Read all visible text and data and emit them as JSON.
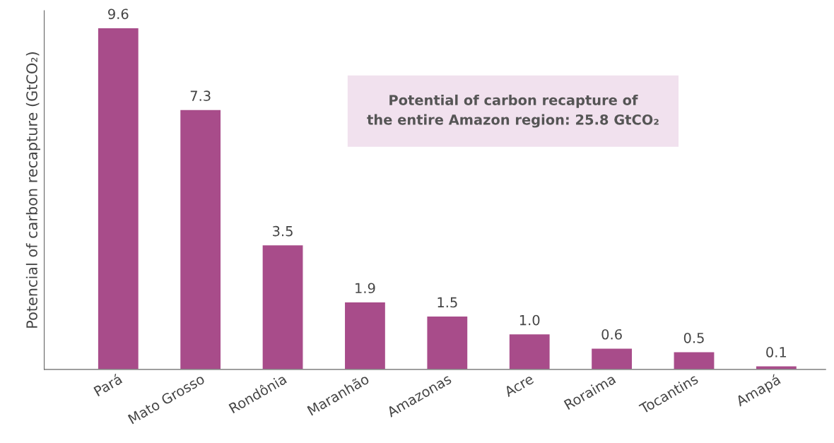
{
  "chart_data": {
    "type": "bar",
    "ylabel": "Potencial of carbon recapture (GtCO₂)",
    "categories": [
      "Pará",
      "Mato Grosso",
      "Rondônia",
      "Maranhão",
      "Amazonas",
      "Acre",
      "Roraima",
      "Tocantins",
      "Amapá"
    ],
    "values": [
      9.6,
      7.3,
      3.5,
      1.9,
      1.5,
      1.0,
      0.6,
      0.5,
      0.1
    ],
    "value_labels": [
      "9.6",
      "7.3",
      "3.5",
      "1.9",
      "1.5",
      "1.0",
      "0.6",
      "0.5",
      "0.1"
    ],
    "color": "#a84c8a",
    "annotations": [
      "Potential of carbon recapture of\nthe entire Amazon region: 25.8 GtCO₂"
    ],
    "tick_labels": "x",
    "grid": false,
    "legend": false
  }
}
